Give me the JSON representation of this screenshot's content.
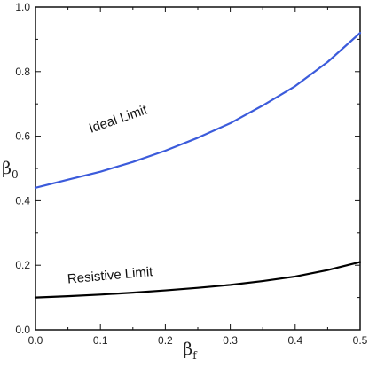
{
  "chart_data": {
    "type": "line",
    "title": "",
    "xlabel": {
      "symbol": "β",
      "subscript": "f"
    },
    "ylabel": {
      "symbol": "β",
      "subscript": "0"
    },
    "xlim": [
      0.0,
      0.5
    ],
    "ylim": [
      0.0,
      1.0
    ],
    "xticks": [
      "0.0",
      "0.1",
      "0.2",
      "0.3",
      "0.4",
      "0.5"
    ],
    "yticks": [
      "0.0",
      "0.2",
      "0.4",
      "0.6",
      "0.8",
      "1.0"
    ],
    "grid": false,
    "legend": "none",
    "series": [
      {
        "name": "Ideal Limit",
        "color": "#3b5bdb",
        "x": [
          0.0,
          0.05,
          0.1,
          0.15,
          0.2,
          0.25,
          0.3,
          0.35,
          0.4,
          0.45,
          0.5
        ],
        "y": [
          0.44,
          0.465,
          0.49,
          0.52,
          0.555,
          0.595,
          0.64,
          0.695,
          0.755,
          0.83,
          0.92
        ]
      },
      {
        "name": "Resistive Limit",
        "color": "#000000",
        "x": [
          0.0,
          0.05,
          0.1,
          0.15,
          0.2,
          0.25,
          0.3,
          0.35,
          0.4,
          0.45,
          0.5
        ],
        "y": [
          0.1,
          0.104,
          0.109,
          0.115,
          0.122,
          0.13,
          0.139,
          0.151,
          0.165,
          0.185,
          0.21
        ]
      }
    ]
  }
}
